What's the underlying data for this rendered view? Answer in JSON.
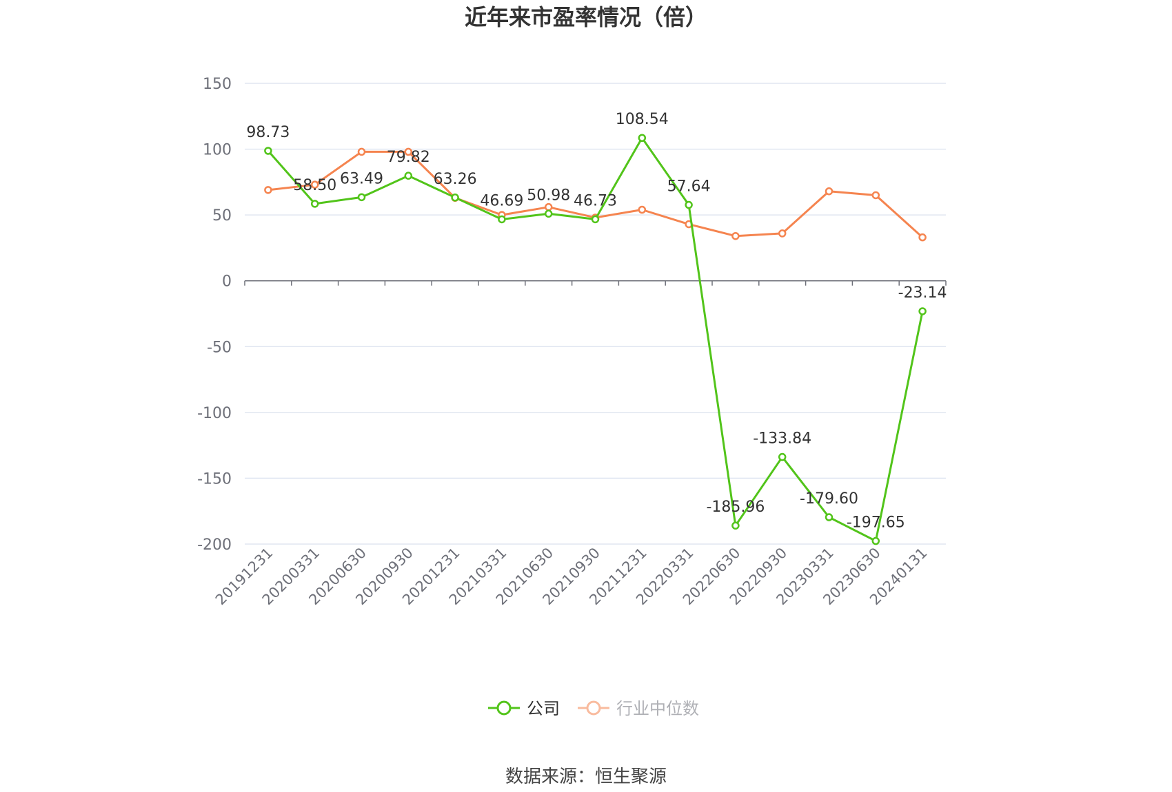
{
  "chart_data": {
    "type": "line",
    "title": "近年来市盈率情况（倍）",
    "categories": [
      "20191231",
      "20200331",
      "20200630",
      "20200930",
      "20201231",
      "20210331",
      "20210630",
      "20210930",
      "20211231",
      "20220331",
      "20220630",
      "20220930",
      "20230331",
      "20230630",
      "20240131"
    ],
    "ylim": [
      -200,
      150
    ],
    "yticks": [
      150,
      100,
      50,
      0,
      -50,
      -100,
      -150,
      -200
    ],
    "grid": true,
    "legend_position": "bottom",
    "series": [
      {
        "name": "公司",
        "color": "#52c41a",
        "values": [
          98.73,
          58.5,
          63.49,
          79.82,
          63.26,
          46.69,
          50.98,
          46.73,
          108.54,
          57.64,
          -185.96,
          -133.84,
          -179.6,
          -197.65,
          -23.14
        ],
        "labels": [
          "98.73",
          "58.50",
          "63.49",
          "79.82",
          "63.26",
          "46.69",
          "50.98",
          "46.73",
          "108.54",
          "57.64",
          "-185.96",
          "-133.84",
          "-179.60",
          "-197.65",
          "-23.14"
        ]
      },
      {
        "name": "行业中位数",
        "color": "#f5844f",
        "values": [
          69,
          73,
          98,
          98,
          63,
          50,
          56,
          48,
          54,
          43,
          34,
          36,
          68,
          65,
          33
        ]
      }
    ]
  },
  "source_text": "数据来源：恒生聚源"
}
